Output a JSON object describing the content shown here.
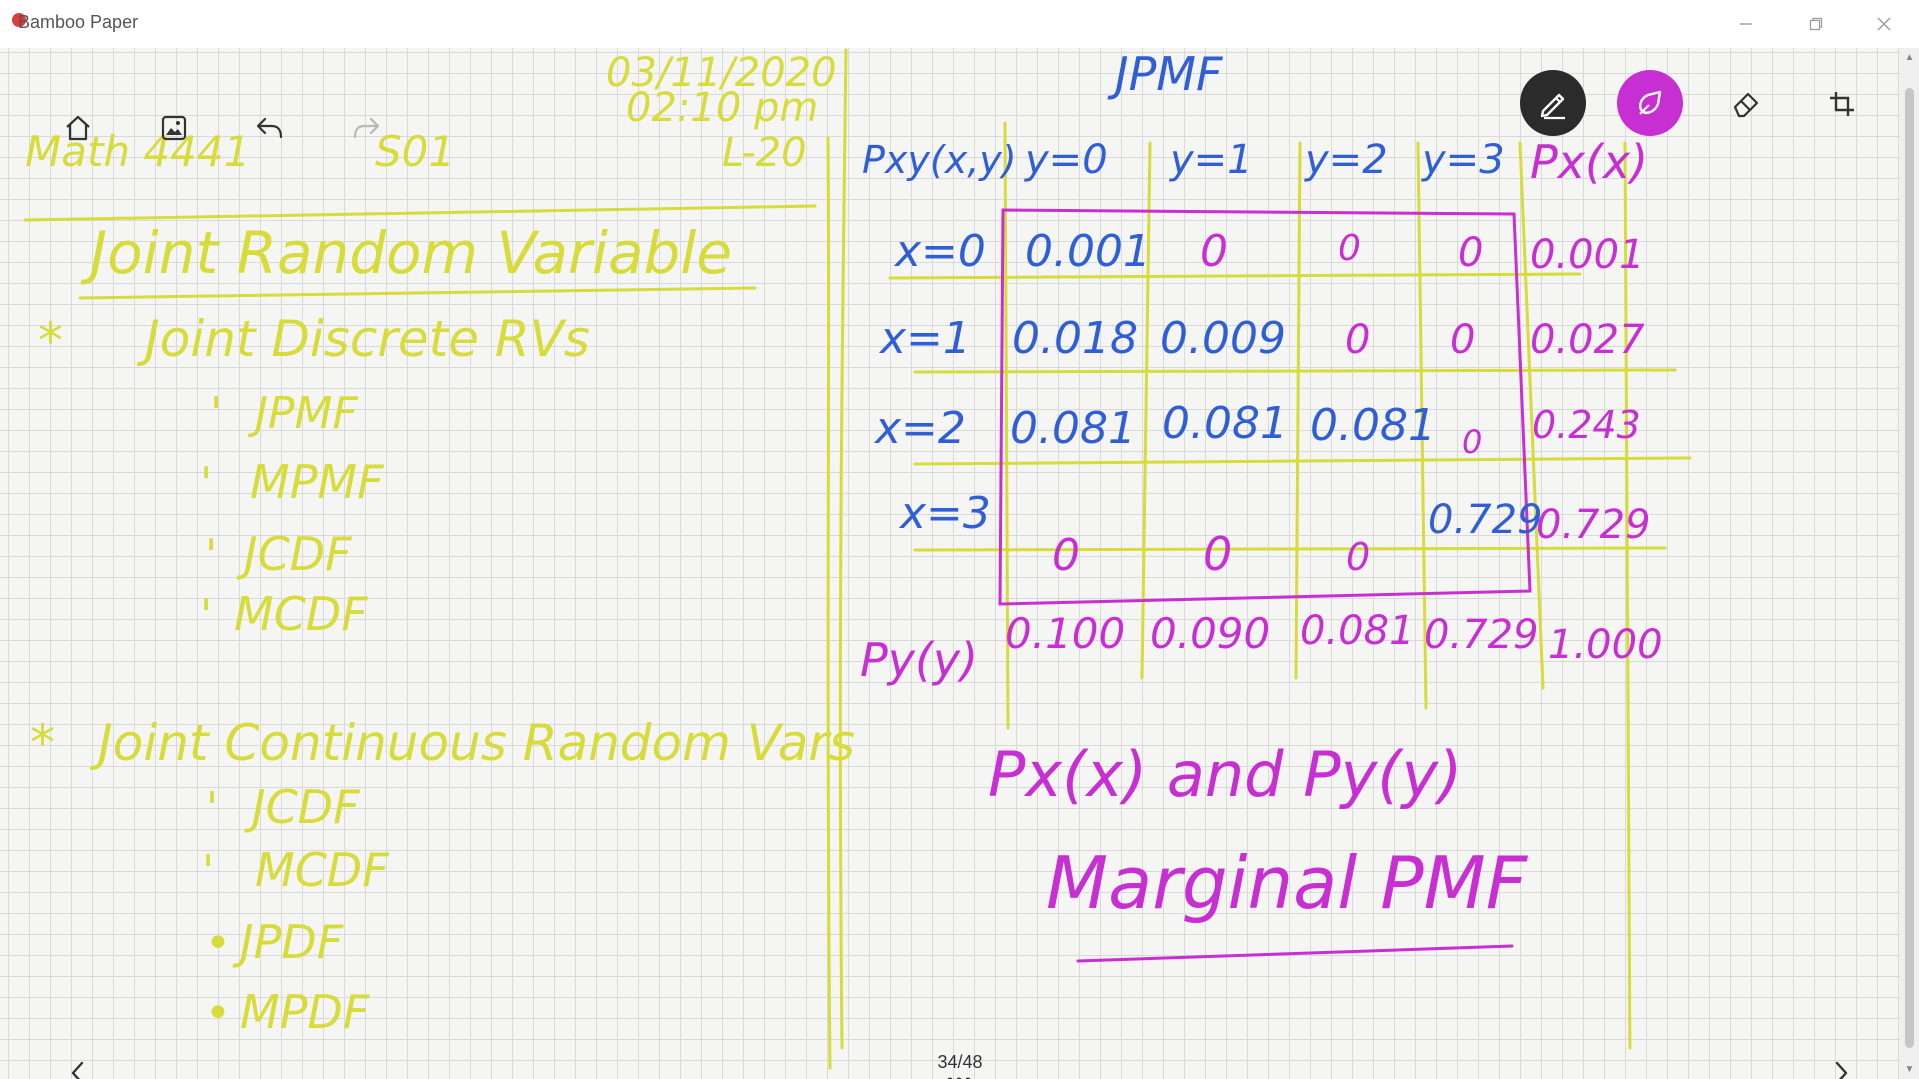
{
  "app": {
    "title": "Bamboo Paper"
  },
  "page": {
    "indicator": "34/48",
    "more": "•••"
  },
  "toolbar": {
    "home": "home-icon",
    "image": "image-icon",
    "undo": "undo-icon",
    "redo": "redo-icon",
    "pen": "pen-icon",
    "color": "ink-color",
    "eraser": "eraser-icon",
    "crop": "crop-icon",
    "active_color": "#c82fd2"
  },
  "notes": {
    "date": "03/11/2020",
    "time": "02:10 pm",
    "course": "Math 4441",
    "section": "S01",
    "lecture": "L-20",
    "heading": "Joint Random Variable",
    "discrete": {
      "title": "Joint Discrete RVs",
      "items": [
        "JPMF",
        "MPMF",
        "JCDF",
        "MCDF"
      ]
    },
    "continuous": {
      "title": "Joint Continuous Random Vars",
      "items": [
        "JCDF",
        "MCDF",
        "JPDF",
        "MPDF"
      ]
    }
  },
  "table": {
    "title": "JPMF",
    "corner": "Pxy(x,y)",
    "col_headers": [
      "y=0",
      "y=1",
      "y=2",
      "y=3"
    ],
    "px_header": "Px(x)",
    "row_headers": [
      "x=0",
      "x=1",
      "x=2",
      "x=3"
    ],
    "cells": [
      [
        "0.001",
        "0",
        "0",
        "0"
      ],
      [
        "0.018",
        "0.009",
        "0",
        "0"
      ],
      [
        "0.081",
        "0.081",
        "0.081",
        "0"
      ],
      [
        "0",
        "0",
        "0",
        "0.729"
      ]
    ],
    "px_values": [
      "0.001",
      "0.027",
      "0.243",
      "0.729"
    ],
    "py_label": "Py(y)",
    "py_values": [
      "0.100",
      "0.090",
      "0.081",
      "0.729"
    ],
    "total": "1.000"
  },
  "caption": {
    "line1": "Px(x) and Py(y)",
    "line2": "Marginal PMF"
  },
  "colors": {
    "yellow_ink": "#d7dc3a",
    "blue_ink": "#2f5ed6",
    "magenta_ink": "#c82fd2"
  }
}
